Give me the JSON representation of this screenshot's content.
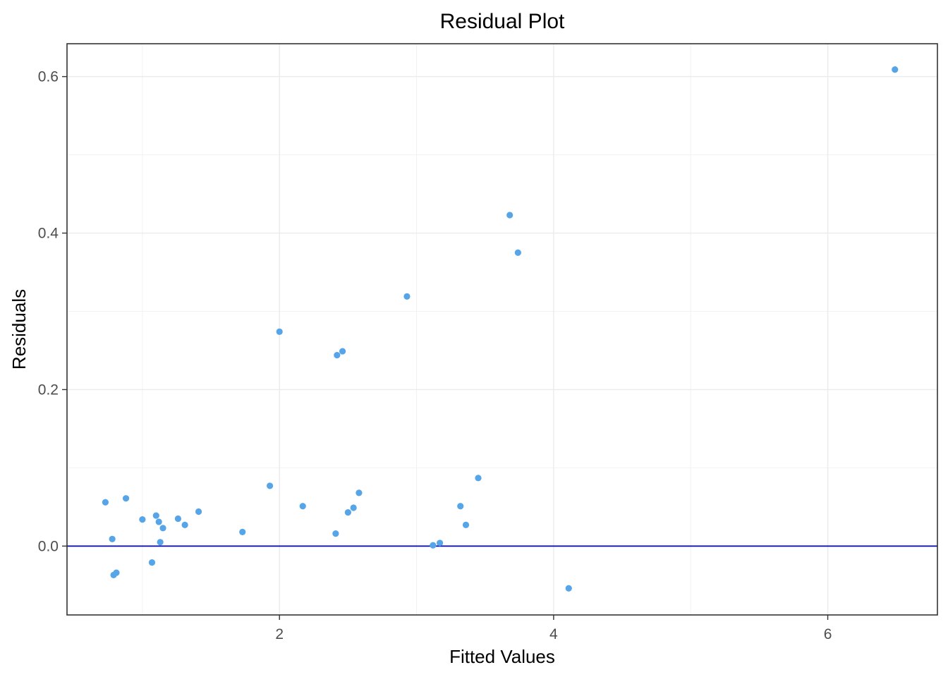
{
  "chart_data": {
    "type": "scatter",
    "title": "Residual Plot",
    "xlabel": "Fitted Values",
    "ylabel": "Residuals",
    "xlim": [
      0.45,
      6.8
    ],
    "ylim": [
      -0.088,
      0.642
    ],
    "x_ticks": [
      2,
      4,
      6
    ],
    "x_tick_labels": [
      "2",
      "4",
      "6"
    ],
    "x_minor_ticks": [
      1,
      3,
      5
    ],
    "y_ticks": [
      0.0,
      0.2,
      0.4,
      0.6
    ],
    "y_tick_labels": [
      "0.0",
      "0.2",
      "0.4",
      "0.6"
    ],
    "y_minor_ticks": [
      0.1,
      0.3,
      0.5
    ],
    "grid": true,
    "legend": "none",
    "reference_line": {
      "y": 0,
      "color": "#0000cd"
    },
    "point_color": "#56a5e8",
    "series": [
      {
        "points": [
          [
            0.73,
            0.056
          ],
          [
            0.78,
            0.009
          ],
          [
            0.79,
            -0.037
          ],
          [
            0.81,
            -0.034
          ],
          [
            0.88,
            0.061
          ],
          [
            1.0,
            0.034
          ],
          [
            1.07,
            -0.021
          ],
          [
            1.1,
            0.039
          ],
          [
            1.12,
            0.031
          ],
          [
            1.13,
            0.005
          ],
          [
            1.15,
            0.023
          ],
          [
            1.26,
            0.035
          ],
          [
            1.31,
            0.027
          ],
          [
            1.41,
            0.044
          ],
          [
            1.73,
            0.018
          ],
          [
            1.93,
            0.077
          ],
          [
            2.0,
            0.274
          ],
          [
            2.17,
            0.051
          ],
          [
            2.41,
            0.016
          ],
          [
            2.42,
            0.244
          ],
          [
            2.46,
            0.249
          ],
          [
            2.5,
            0.043
          ],
          [
            2.54,
            0.049
          ],
          [
            2.58,
            0.068
          ],
          [
            2.93,
            0.319
          ],
          [
            3.12,
            0.001
          ],
          [
            3.17,
            0.004
          ],
          [
            3.32,
            0.051
          ],
          [
            3.36,
            0.027
          ],
          [
            3.45,
            0.087
          ],
          [
            3.68,
            0.423
          ],
          [
            3.74,
            0.375
          ],
          [
            4.11,
            -0.054
          ],
          [
            6.49,
            0.609
          ]
        ]
      }
    ]
  }
}
